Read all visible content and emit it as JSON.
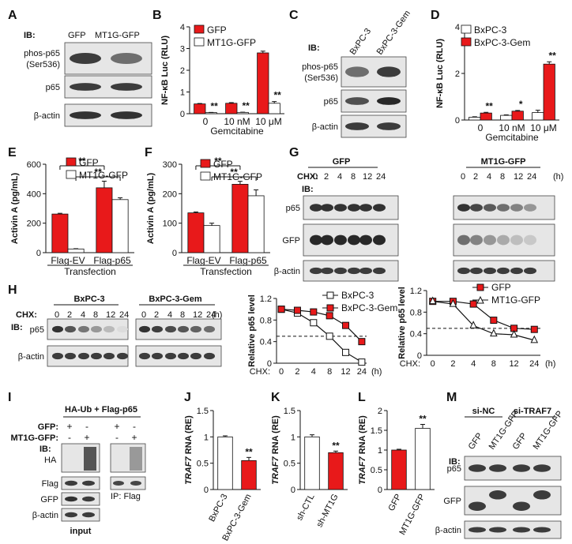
{
  "panel_letters": [
    "A",
    "B",
    "C",
    "D",
    "E",
    "F",
    "G",
    "H",
    "I",
    "J",
    "K",
    "L",
    "M"
  ],
  "blots": {
    "A": {
      "ib": "IB:",
      "lanes": [
        "GFP",
        "MT1G-GFP"
      ],
      "rows": [
        "phos-p65\n(Ser536)",
        "p65",
        "β-actin"
      ]
    },
    "C": {
      "ib": "IB:",
      "lanes": [
        "BxPC-3",
        "BxPC-3-Gem"
      ],
      "rows": [
        "phos-p65\n(Ser536)",
        "p65",
        "β-actin"
      ]
    },
    "G": {
      "cond": [
        "GFP",
        "MT1G-GFP"
      ],
      "chx": "CHX:",
      "times": [
        "0",
        "2",
        "4",
        "8",
        "12",
        "24"
      ],
      "unit": "(h)",
      "ib": "IB:",
      "rows": [
        "p65",
        "GFP",
        "β-actin"
      ]
    },
    "H": {
      "cond": [
        "BxPC-3",
        "BxPC-3-Gem"
      ],
      "chx": "CHX:",
      "times": [
        "0",
        "2",
        "4",
        "8",
        "12",
        "24"
      ],
      "unit": "(h)",
      "ib": "IB:",
      "rows": [
        "p65",
        "β-actin"
      ]
    },
    "I": {
      "title": "HA-Ub + Flag-p65",
      "signs": [
        [
          "GFP:",
          "+",
          "-",
          "+",
          "-"
        ],
        [
          "MT1G-GFP:",
          "-",
          "+",
          "-",
          "+"
        ]
      ],
      "ib": "IB:",
      "ha": "HA",
      "rows": [
        "Flag",
        "GFP",
        "β-actin"
      ],
      "input": "input",
      "ip": "IP: Flag"
    },
    "M": {
      "groups": [
        "si-NC",
        "si-TRAF7"
      ],
      "lanes": [
        "GFP",
        "MT1G-GFP",
        "GFP",
        "MT1G-GFP"
      ],
      "ib": "IB:",
      "rows": [
        "p65",
        "GFP",
        "β-actin"
      ]
    }
  },
  "chart_data": [
    {
      "panel": "B",
      "type": "bar",
      "categories": [
        "0",
        "10 nM",
        "10 μM"
      ],
      "xlabel": "Gemcitabine",
      "ylabel": "NF-κB Luc (RLU)",
      "ylim": [
        0,
        4
      ],
      "yticks": [
        0,
        1,
        2,
        3,
        4
      ],
      "series": [
        {
          "name": "GFP",
          "color": "#e8191a",
          "values": [
            0.45,
            0.48,
            2.8
          ],
          "errors": [
            0.02,
            0.03,
            0.08
          ]
        },
        {
          "name": "MT1G-GFP",
          "color": "#ffffff",
          "values": [
            0.05,
            0.06,
            0.48
          ],
          "errors": [
            0.01,
            0.01,
            0.08
          ]
        }
      ],
      "annotations": [
        {
          "category": 0,
          "series": 1,
          "text": "**"
        },
        {
          "category": 1,
          "series": 1,
          "text": "**"
        },
        {
          "category": 2,
          "series": 1,
          "text": "**"
        }
      ]
    },
    {
      "panel": "D",
      "type": "bar",
      "categories": [
        "0",
        "10 nM",
        "10 μM"
      ],
      "xlabel": "Gemcitabine",
      "ylabel": "NF-κB Luc (RLU)",
      "ylim": [
        0,
        4
      ],
      "yticks": [
        0,
        2,
        4
      ],
      "series": [
        {
          "name": "BxPC-3",
          "color": "#ffffff",
          "values": [
            0.12,
            0.2,
            0.32
          ],
          "errors": [
            0.02,
            0.02,
            0.1
          ]
        },
        {
          "name": "BxPC-3-Gem",
          "color": "#e8191a",
          "values": [
            0.3,
            0.38,
            2.4
          ],
          "errors": [
            0.03,
            0.03,
            0.1
          ]
        }
      ],
      "annotations": [
        {
          "category": 0,
          "series": 1,
          "text": "**"
        },
        {
          "category": 1,
          "series": 1,
          "text": "*"
        },
        {
          "category": 2,
          "series": 1,
          "text": "**"
        }
      ]
    },
    {
      "panel": "E",
      "type": "bar",
      "categories": [
        "Flag-EV",
        "Flag-p65"
      ],
      "xlabel": "Transfection",
      "ylabel": "Activin A (pg/mL)",
      "ylim": [
        0,
        600
      ],
      "yticks": [
        0,
        200,
        400,
        600
      ],
      "series": [
        {
          "name": "GFP",
          "color": "#e8191a",
          "values": [
            262,
            440
          ],
          "errors": [
            5,
            45
          ]
        },
        {
          "name": "MT1G-GFP",
          "color": "#ffffff",
          "values": [
            25,
            360
          ],
          "errors": [
            2,
            12
          ]
        }
      ],
      "brackets": [
        {
          "from": [
            0,
            0
          ],
          "to": [
            1,
            0
          ],
          "text": "**"
        },
        {
          "from": [
            0,
            1
          ],
          "to": [
            1,
            1
          ],
          "text": "**"
        }
      ]
    },
    {
      "panel": "F",
      "type": "bar",
      "categories": [
        "Flag-EV",
        "Flag-p65"
      ],
      "xlabel": "Transfection",
      "ylabel": "Activin A (pg/mL)",
      "ylim": [
        0,
        300
      ],
      "yticks": [
        0,
        100,
        200,
        300
      ],
      "series": [
        {
          "name": "GFP",
          "color": "#e8191a",
          "values": [
            135,
            232
          ],
          "errors": [
            3,
            10
          ]
        },
        {
          "name": "MT1G-GFP",
          "color": "#ffffff",
          "values": [
            92,
            193
          ],
          "errors": [
            8,
            20
          ]
        }
      ],
      "brackets": [
        {
          "from": [
            0,
            0
          ],
          "to": [
            1,
            0
          ],
          "text": "**"
        },
        {
          "from": [
            0,
            1
          ],
          "to": [
            1,
            1
          ],
          "text": "**"
        }
      ]
    },
    {
      "panel": "H-left",
      "type": "line",
      "x": [
        "0",
        "2",
        "4",
        "8",
        "12",
        "24"
      ],
      "xlabel": "CHX:",
      "xunit": "(h)",
      "ylabel": "Relative p65 level",
      "ylim": [
        0,
        1.2
      ],
      "yticks": [
        0,
        0.4,
        0.8,
        1.2
      ],
      "refline": 0.5,
      "series": [
        {
          "name": "BxPC-3",
          "color": "#ffffff",
          "marker": "square",
          "values": [
            1.0,
            0.93,
            0.75,
            0.5,
            0.2,
            0.02
          ]
        },
        {
          "name": "BxPC-3-Gem",
          "color": "#e8191a",
          "marker": "square",
          "values": [
            1.0,
            0.98,
            0.95,
            0.88,
            0.7,
            0.4
          ]
        }
      ]
    },
    {
      "panel": "H-right",
      "type": "line",
      "x": [
        "0",
        "2",
        "4",
        "8",
        "12",
        "24"
      ],
      "xlabel": "CHX:",
      "xunit": "(h)",
      "ylabel": "Relative p65 level",
      "ylim": [
        0,
        1.2
      ],
      "yticks": [
        0,
        0.4,
        0.8,
        1.2
      ],
      "refline": 0.5,
      "series": [
        {
          "name": "GFP",
          "color": "#e8191a",
          "marker": "square",
          "values": [
            1.0,
            1.0,
            0.95,
            0.65,
            0.5,
            0.48
          ]
        },
        {
          "name": "MT1G-GFP",
          "color": "#ffffff",
          "marker": "triangle",
          "values": [
            1.0,
            0.95,
            0.55,
            0.4,
            0.38,
            0.28
          ]
        }
      ]
    },
    {
      "panel": "J",
      "type": "bar",
      "categories": [
        "BxPC-3",
        "BxPC-3-Gem"
      ],
      "ylabel": "TRAF7 RNA (RE)",
      "ylim": [
        0,
        1.5
      ],
      "yticks": [
        0,
        0.5,
        1,
        1.5
      ],
      "series": [
        {
          "name": "",
          "colors": [
            "#ffffff",
            "#e8191a"
          ],
          "values": [
            1.0,
            0.55
          ],
          "errors": [
            0.02,
            0.06
          ]
        }
      ],
      "annotations": [
        {
          "category": 1,
          "text": "**"
        }
      ]
    },
    {
      "panel": "K",
      "type": "bar",
      "categories": [
        "sh-CTL",
        "sh-MT1G"
      ],
      "ylabel": "TRAF7 RNA (RE)",
      "ylim": [
        0,
        1.5
      ],
      "yticks": [
        0,
        0.5,
        1,
        1.5
      ],
      "series": [
        {
          "name": "",
          "colors": [
            "#ffffff",
            "#e8191a"
          ],
          "values": [
            1.0,
            0.7
          ],
          "errors": [
            0.04,
            0.03
          ]
        }
      ],
      "annotations": [
        {
          "category": 1,
          "text": "**"
        }
      ]
    },
    {
      "panel": "L",
      "type": "bar",
      "categories": [
        "GFP",
        "MT1G-GFP"
      ],
      "ylabel": "TRAF7 RNA (RE)",
      "ylim": [
        0,
        2
      ],
      "yticks": [
        0,
        0.5,
        1,
        1.5,
        2
      ],
      "series": [
        {
          "name": "",
          "colors": [
            "#e8191a",
            "#ffffff"
          ],
          "values": [
            1.0,
            1.55
          ],
          "errors": [
            0.02,
            0.1
          ]
        }
      ],
      "annotations": [
        {
          "category": 1,
          "text": "**"
        }
      ]
    }
  ]
}
